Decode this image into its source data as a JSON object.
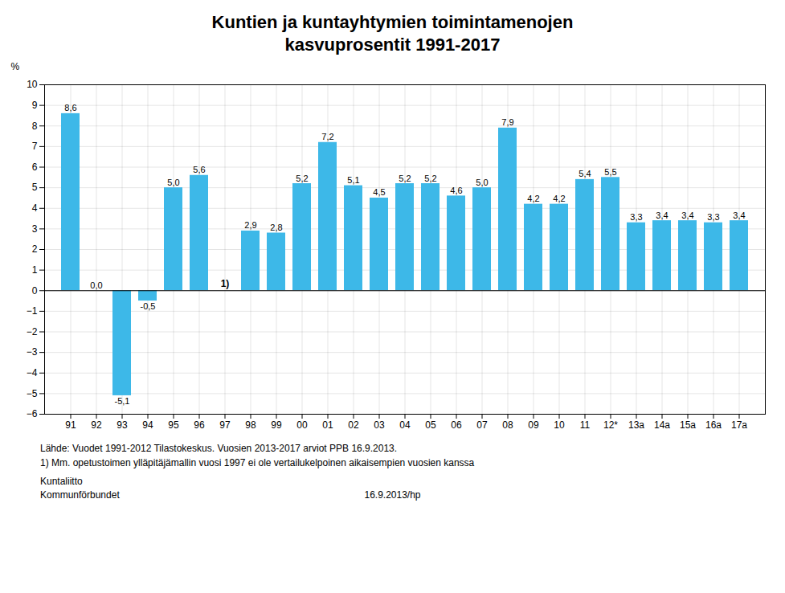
{
  "chart_data": {
    "type": "bar",
    "title": "Kuntien ja kuntayhtymien toimintamenojen\nkasvuprosentit 1991-2017",
    "ylabel": "%",
    "categories": [
      "91",
      "92",
      "93",
      "94",
      "95",
      "96",
      "97",
      "98",
      "99",
      "00",
      "01",
      "02",
      "03",
      "04",
      "05",
      "06",
      "07",
      "08",
      "09",
      "10",
      "11",
      "12*",
      "13a",
      "14a",
      "15a",
      "16a",
      "17a"
    ],
    "values": [
      8.6,
      0.0,
      -5.1,
      -0.5,
      5.0,
      5.6,
      null,
      2.9,
      2.8,
      5.2,
      7.2,
      5.1,
      4.5,
      5.2,
      5.2,
      4.6,
      5.0,
      7.9,
      4.2,
      4.2,
      5.4,
      5.5,
      3.3,
      3.4,
      3.4,
      3.3,
      3.4
    ],
    "value_labels": [
      "8,6",
      "0,0",
      "-5,1",
      "-0,5",
      "5,0",
      "5,6",
      null,
      "2,9",
      "2,8",
      "5,2",
      "7,2",
      "5,1",
      "4,5",
      "5,2",
      "5,2",
      "4,6",
      "5,0",
      "7,9",
      "4,2",
      "4,2",
      "5,4",
      "5,5",
      "3,3",
      "3,4",
      "3,4",
      "3,3",
      "3,4"
    ],
    "data_labels": true,
    "color": "#3db8e8",
    "ylim": [
      -6,
      10
    ],
    "yticks": [
      -6,
      -5,
      -4,
      -3,
      -2,
      -1,
      0,
      1,
      2,
      3,
      4,
      5,
      6,
      7,
      8,
      9,
      10
    ],
    "grid": true,
    "annotations": [
      {
        "x": "97",
        "text": "1)"
      }
    ],
    "source": [
      "Lähde: Vuodet 1991-2012 Tilastokeskus. Vuosien 2013-2017 arviot PPB 16.9.2013.",
      "1) Mm. opetustoimen ylläpitäjämallin vuosi 1997 ei ole vertailukelpoinen aikaisempien vuosien kanssa"
    ],
    "footer": "16.9.2013/hp",
    "organization": "Kuntaliitto\nKommunförbundet"
  }
}
